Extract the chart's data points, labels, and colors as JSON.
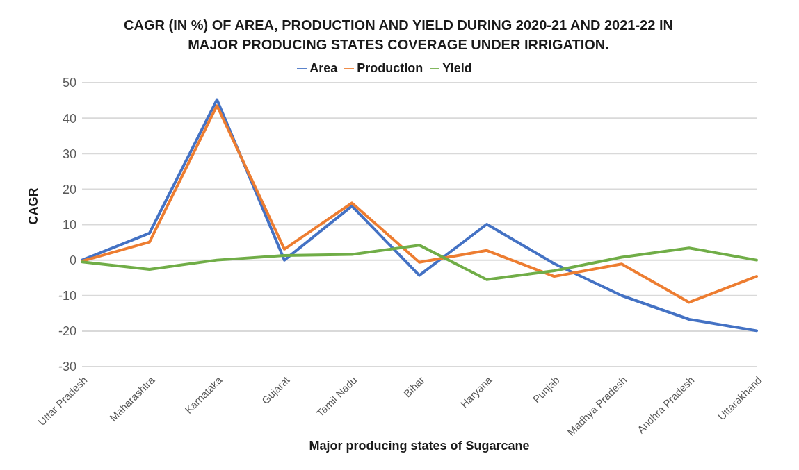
{
  "chart_data": {
    "type": "line",
    "title": "CAGR (IN %) OF AREA, PRODUCTION AND YIELD DURING 2020-21 AND 2021-22 IN MAJOR PRODUCING STATES COVERAGE UNDER IRRIGATION.",
    "xlabel": "Major producing states of Sugarcane",
    "ylabel": "CAGR",
    "categories": [
      "Uttar Pradesh",
      "Maharashtra",
      "Karnataka",
      "Gujarat",
      "Tamil Nadu",
      "Bihar",
      "Haryana",
      "Punjab",
      "Madhya Pradesh",
      "Andhra Pradesh",
      "Uttarakhand"
    ],
    "series": [
      {
        "name": "Area",
        "color": "#4472c4",
        "values": [
          0,
          7.6,
          45.2,
          0,
          15.2,
          -4.3,
          10.1,
          -1,
          -10,
          -16.7,
          -19.9
        ]
      },
      {
        "name": "Production",
        "color": "#ed7d31",
        "values": [
          -0.3,
          5.1,
          43.5,
          3.1,
          16.1,
          -0.6,
          2.7,
          -4.6,
          -1.1,
          -11.9,
          -4.6
        ]
      },
      {
        "name": "Yield",
        "color": "#70ad47",
        "values": [
          -0.5,
          -2.6,
          0,
          1.3,
          1.6,
          4.2,
          -5.5,
          -3,
          0.8,
          3.4,
          0
        ]
      }
    ],
    "ylim": [
      -30,
      50
    ],
    "yticks": [
      -30,
      -20,
      -10,
      0,
      10,
      20,
      30,
      40,
      50
    ],
    "grid": "y",
    "legend": "top",
    "marker": "none",
    "line_style": "solid"
  }
}
